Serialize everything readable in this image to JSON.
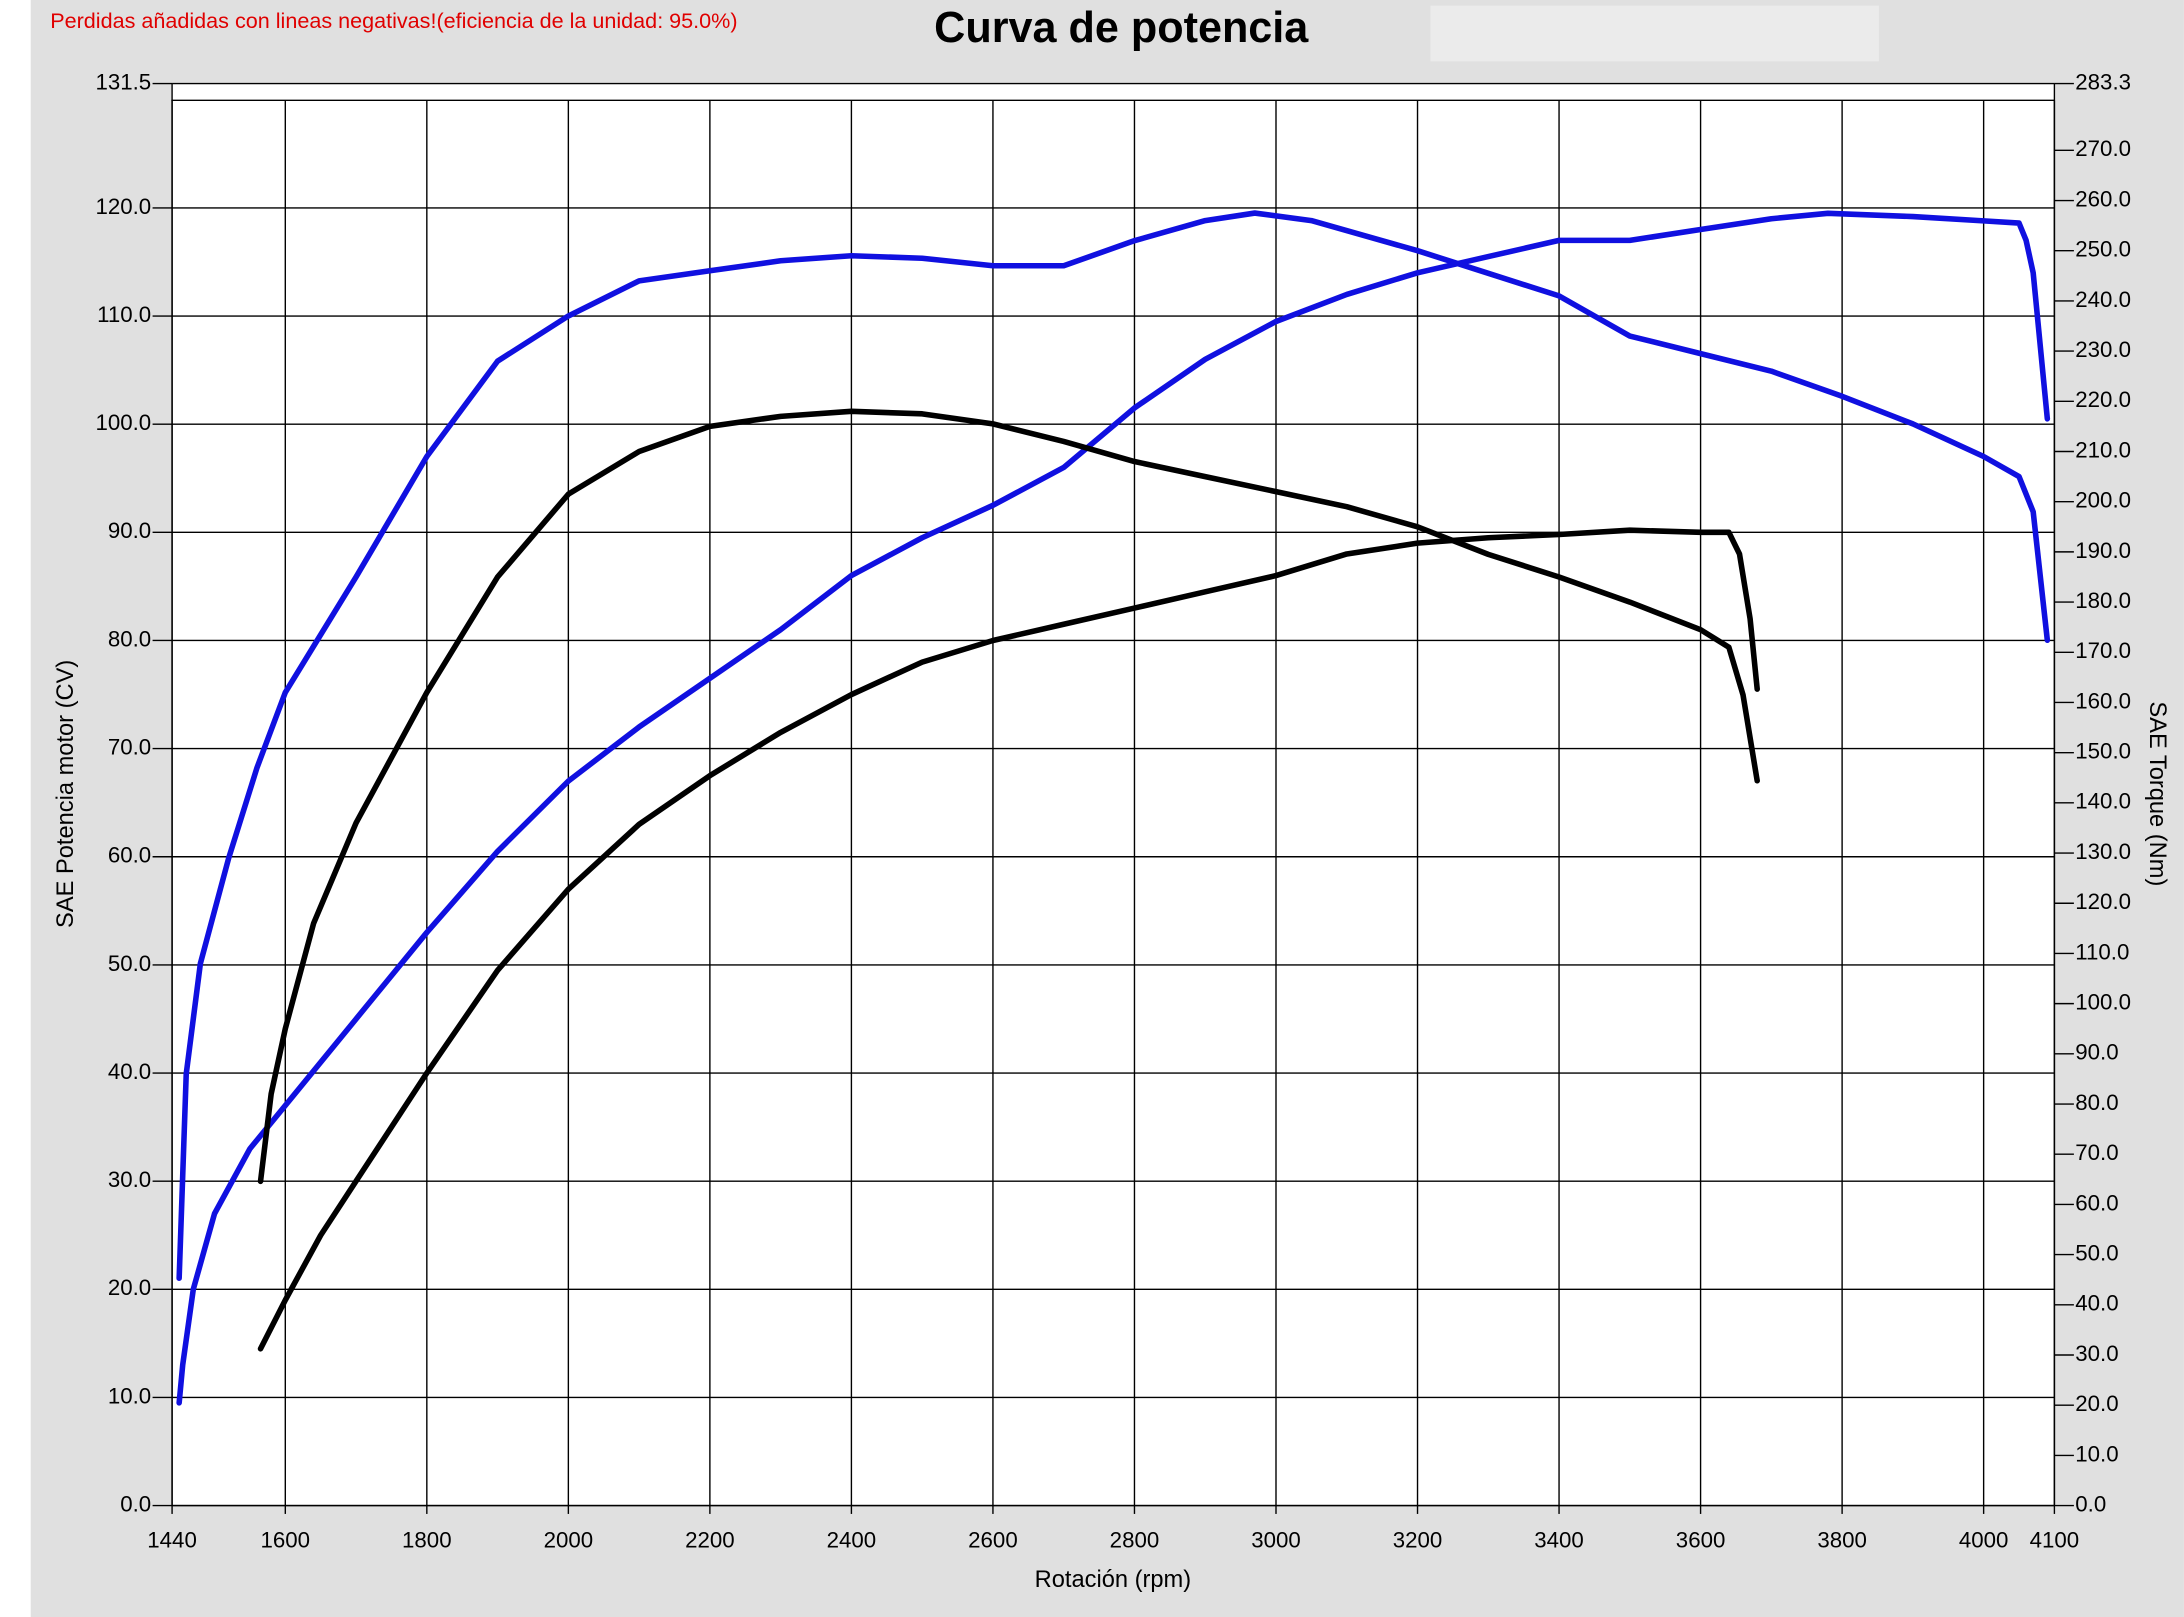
{
  "chart_data": {
    "type": "line",
    "title": "Curva de potencia",
    "annotation": "Perdidas añadidas con lineas negativas!(eficiencia de la unidad: 95.0%)",
    "xlabel": "Rotación (rpm)",
    "ylabel": "SAE Potencia motor (CV)",
    "y2label": "SAE Torque (Nm)",
    "xlim": [
      1440,
      4100
    ],
    "xticks": [
      1440,
      1600,
      1800,
      2000,
      2200,
      2400,
      2600,
      2800,
      3000,
      3200,
      3400,
      3600,
      3800,
      4000,
      4100
    ],
    "ylim": [
      0,
      131.5
    ],
    "yticks": [
      {
        "value": 0,
        "label": "0.0"
      },
      {
        "value": 10,
        "label": "10.0"
      },
      {
        "value": 20,
        "label": "20.0"
      },
      {
        "value": 30,
        "label": "30.0"
      },
      {
        "value": 40,
        "label": "40.0"
      },
      {
        "value": 50,
        "label": "50.0"
      },
      {
        "value": 60,
        "label": "60.0"
      },
      {
        "value": 70,
        "label": "70.0"
      },
      {
        "value": 80,
        "label": "80.0"
      },
      {
        "value": 90,
        "label": "90.0"
      },
      {
        "value": 100,
        "label": "100.0"
      },
      {
        "value": 110,
        "label": "110.0"
      },
      {
        "value": 120,
        "label": "120.0"
      },
      131.5
    ],
    "y2lim": [
      0,
      283.3
    ],
    "y2ticks": [
      {
        "value": 0,
        "label": "0.0"
      },
      {
        "value": 10,
        "label": "10.0"
      },
      {
        "value": 20,
        "label": "20.0"
      },
      {
        "value": 30,
        "label": "30.0"
      },
      {
        "value": 40,
        "label": "40.0"
      },
      {
        "value": 50,
        "label": "50.0"
      },
      {
        "value": 60,
        "label": "60.0"
      },
      {
        "value": 70,
        "label": "70.0"
      },
      {
        "value": 80,
        "label": "80.0"
      },
      {
        "value": 90,
        "label": "90.0"
      },
      {
        "value": 100,
        "label": "100.0"
      },
      {
        "value": 110,
        "label": "110.0"
      },
      {
        "value": 120,
        "label": "120.0"
      },
      {
        "value": 130,
        "label": "130.0"
      },
      {
        "value": 140,
        "label": "140.0"
      },
      {
        "value": 150,
        "label": "150.0"
      },
      {
        "value": 160,
        "label": "160.0"
      },
      {
        "value": 170,
        "label": "170.0"
      },
      {
        "value": 180,
        "label": "180.0"
      },
      {
        "value": 190,
        "label": "190.0"
      },
      {
        "value": 200,
        "label": "200.0"
      },
      {
        "value": 210,
        "label": "210.0"
      },
      {
        "value": 220,
        "label": "220.0"
      },
      {
        "value": 230,
        "label": "230.0"
      },
      {
        "value": 240,
        "label": "240.0"
      },
      {
        "value": 250,
        "label": "250.0"
      },
      {
        "value": 260,
        "label": "260.0"
      },
      {
        "value": 270,
        "label": "270.0"
      },
      283.3
    ],
    "grid": true,
    "series": [
      {
        "color": "#1010e0",
        "axis": "y2",
        "x": [
          1450,
          1460,
          1480,
          1520,
          1560,
          1600,
          1700,
          1800,
          1900,
          2000,
          2100,
          2200,
          2300,
          2400,
          2500,
          2600,
          2700,
          2800,
          2900,
          2970,
          3050,
          3200,
          3300,
          3400,
          3500,
          3600,
          3700,
          3800,
          3900,
          4000,
          4050,
          4070,
          4090
        ],
        "values": [
          45.3,
          86,
          108,
          129,
          147,
          162,
          185,
          209,
          228,
          237,
          244,
          246,
          248,
          249,
          248.5,
          247,
          247,
          252,
          256,
          257.5,
          256,
          250,
          245.5,
          241,
          233,
          229.5,
          226,
          221,
          215.5,
          209,
          205,
          198,
          172.4
        ]
      },
      {
        "color": "#1010e0",
        "x": [
          1450,
          1455,
          1470,
          1500,
          1550,
          1600,
          1700,
          1800,
          1900,
          2000,
          2100,
          2200,
          2300,
          2400,
          2500,
          2600,
          2700,
          2800,
          2900,
          3000,
          3100,
          3200,
          3300,
          3400,
          3500,
          3600,
          3700,
          3780,
          3900,
          4000,
          4050,
          4060,
          4070,
          4090
        ],
        "values": [
          9.5,
          13,
          20,
          27,
          33,
          37,
          45,
          53,
          60.5,
          67,
          72,
          76.5,
          81,
          86,
          89.5,
          92.5,
          96,
          101.5,
          106,
          109.5,
          112,
          114,
          115.5,
          117,
          117,
          118,
          119,
          119.5,
          119.2,
          118.8,
          118.6,
          117,
          114,
          100.5
        ]
      },
      {
        "color": "#000000",
        "axis": "y2",
        "x": [
          1565,
          1580,
          1600,
          1640,
          1700,
          1800,
          1900,
          2000,
          2100,
          2200,
          2300,
          2400,
          2500,
          2600,
          2700,
          2800,
          2900,
          3000,
          3100,
          3200,
          3300,
          3400,
          3500,
          3600,
          3640,
          3660,
          3680
        ],
        "values": [
          64.6,
          82,
          95,
          116,
          136,
          162,
          185,
          201.5,
          210,
          215,
          217,
          218,
          217.5,
          215.5,
          212,
          208,
          205,
          202,
          199,
          195,
          189.5,
          185,
          180,
          174.5,
          171,
          161.5,
          144.4
        ]
      },
      {
        "color": "#000000",
        "x": [
          1565,
          1600,
          1650,
          1700,
          1800,
          1900,
          2000,
          2100,
          2200,
          2300,
          2400,
          2500,
          2600,
          2700,
          2800,
          2900,
          3000,
          3100,
          3200,
          3300,
          3400,
          3500,
          3600,
          3640,
          3655,
          3670,
          3680
        ],
        "values": [
          14.5,
          19,
          25,
          30,
          40,
          49.5,
          57,
          63,
          67.5,
          71.5,
          75,
          78,
          80,
          81.5,
          83,
          84.5,
          86,
          88,
          89,
          89.5,
          89.8,
          90.2,
          90,
          90,
          88,
          82,
          75.5
        ]
      }
    ]
  }
}
